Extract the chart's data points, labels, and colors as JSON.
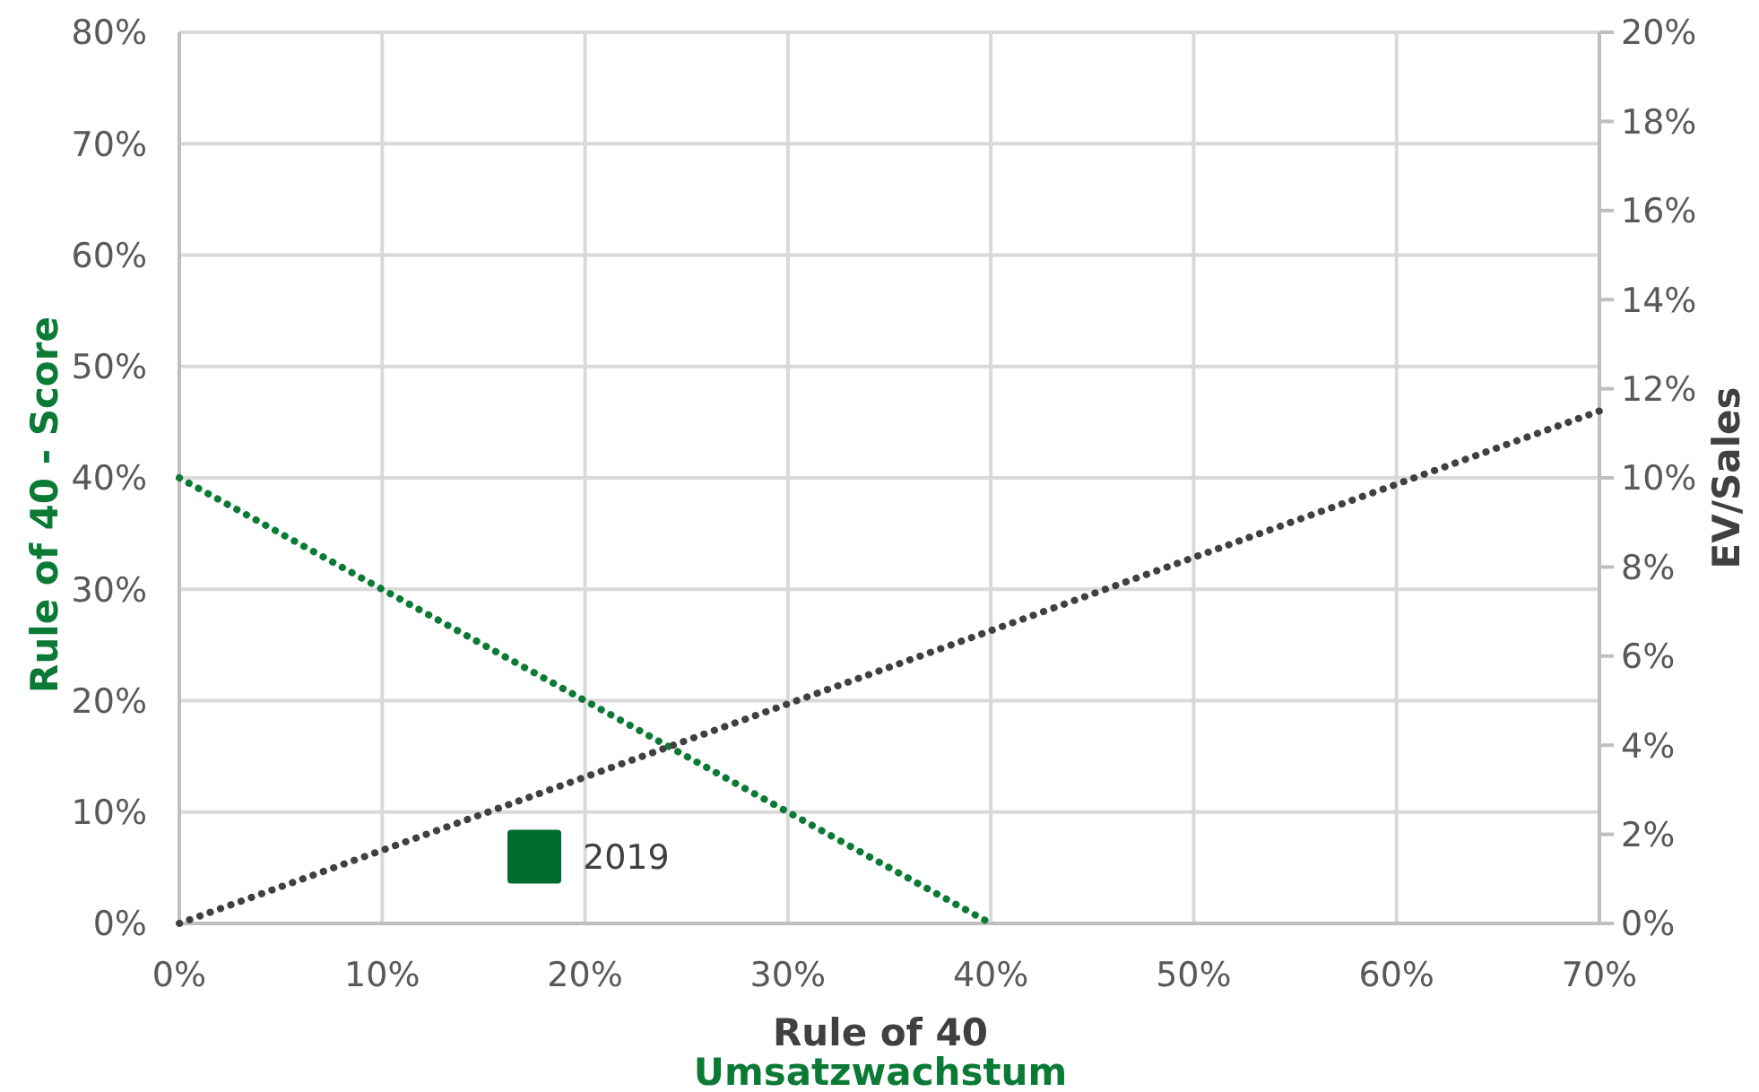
{
  "chart_data": {
    "type": "line",
    "xlabel": "Rule of 40",
    "ylabel": "Rule of 40 - Score",
    "y2label": "EV/Sales",
    "annotations": [
      "Umsatzwachstum"
    ],
    "xlim": [
      0,
      70
    ],
    "xticks": [
      {
        "value": 0,
        "label": "0%"
      },
      {
        "value": 10,
        "label": "10%"
      },
      {
        "value": 20,
        "label": "20%"
      },
      {
        "value": 30,
        "label": "30%"
      },
      {
        "value": 40,
        "label": "40%"
      },
      {
        "value": 50,
        "label": "50%"
      },
      {
        "value": 60,
        "label": "60%"
      },
      {
        "value": 70,
        "label": "70%"
      }
    ],
    "ylim": [
      0,
      80
    ],
    "yticks": [
      {
        "value": 0,
        "label": "0%"
      },
      {
        "value": 10,
        "label": "10%"
      },
      {
        "value": 20,
        "label": "20%"
      },
      {
        "value": 30,
        "label": "30%"
      },
      {
        "value": 40,
        "label": "40%"
      },
      {
        "value": 50,
        "label": "50%"
      },
      {
        "value": 60,
        "label": "60%"
      },
      {
        "value": 70,
        "label": "70%"
      },
      {
        "value": 80,
        "label": "80%"
      }
    ],
    "y2lim": [
      0,
      20
    ],
    "y2ticks": [
      {
        "value": 0,
        "label": "0%"
      },
      {
        "value": 2,
        "label": "2%"
      },
      {
        "value": 4,
        "label": "4%"
      },
      {
        "value": 6,
        "label": "6%"
      },
      {
        "value": 8,
        "label": "8%"
      },
      {
        "value": 10,
        "label": "10%"
      },
      {
        "value": 12,
        "label": "12%"
      },
      {
        "value": 14,
        "label": "14%"
      },
      {
        "value": 16,
        "label": "16%"
      },
      {
        "value": 18,
        "label": "18%"
      },
      {
        "value": 20,
        "label": "20%"
      }
    ],
    "grid": true,
    "series": [
      {
        "color": "#0a7a35",
        "x": [
          0,
          40
        ],
        "values": [
          40,
          0
        ],
        "line_style": "dotted",
        "marker": "none"
      },
      {
        "color": "#404040",
        "x": [
          0,
          70
        ],
        "values": [
          0,
          11.5
        ],
        "axis": "y2",
        "line_style": "dotted",
        "marker": "none"
      },
      {
        "type": "scatter",
        "name": "2019",
        "color": "#006b2e",
        "x": [
          17.5
        ],
        "values": [
          6
        ],
        "marker": "square"
      }
    ]
  }
}
